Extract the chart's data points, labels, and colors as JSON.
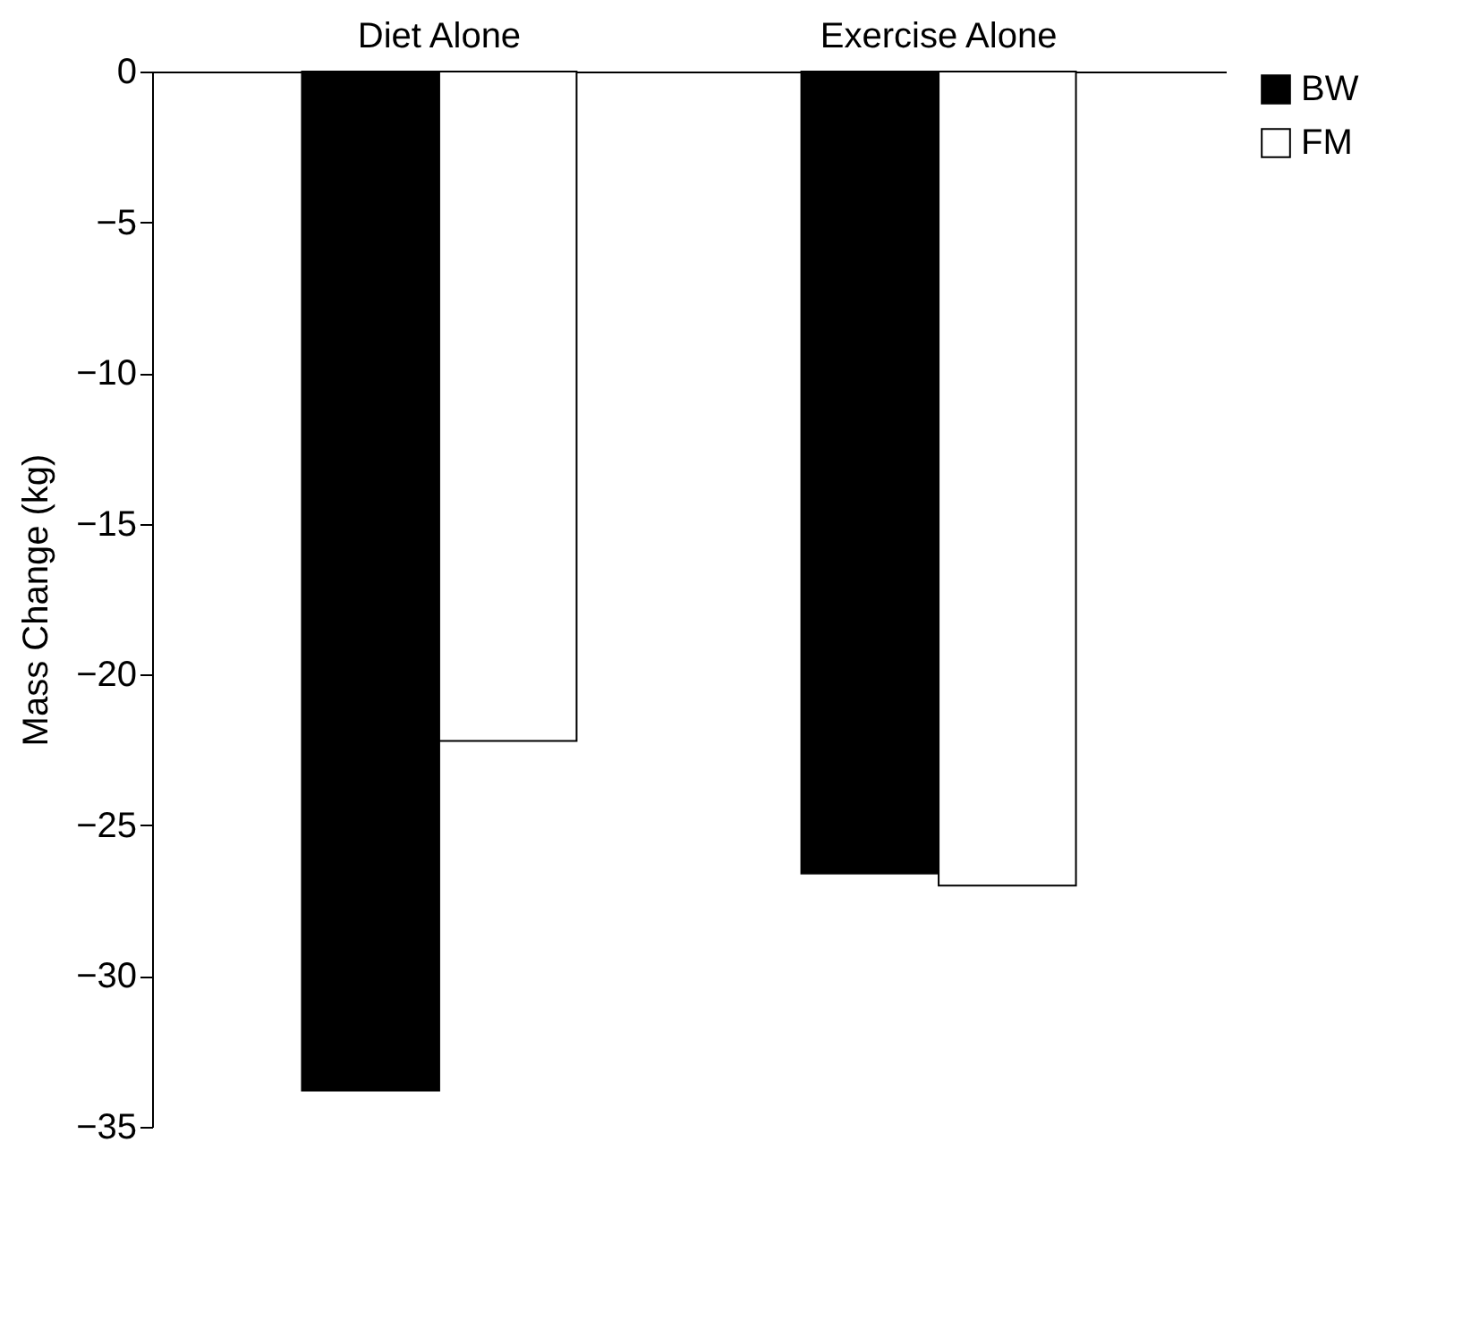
{
  "chart_data": {
    "type": "bar",
    "ylabel": "Mass Change (kg)",
    "categories": [
      "Diet Alone",
      "Exercise Alone"
    ],
    "series": [
      {
        "name": "BW",
        "color": "#000000",
        "values": [
          -33.8,
          -26.6
        ]
      },
      {
        "name": "FM",
        "color": "#ffffff",
        "values": [
          -22.2,
          -27.0
        ]
      }
    ],
    "ylim": [
      -35,
      0
    ],
    "yticks": [
      0,
      -5,
      -10,
      -15,
      -20,
      -25,
      -30,
      -35
    ],
    "grid": false,
    "legend": "right"
  }
}
